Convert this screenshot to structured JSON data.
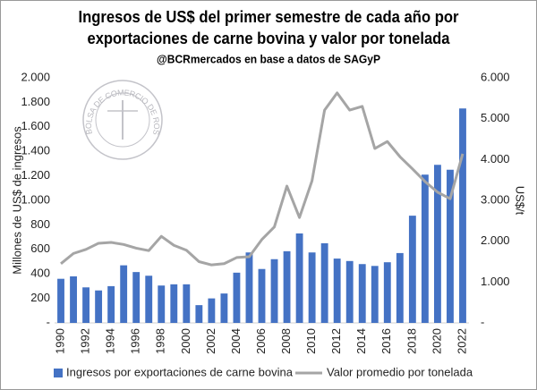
{
  "chart_data": {
    "type": "bar_line",
    "title": [
      "Ingresos de US$ del primer semestre de cada año por",
      "exportaciones de carne bovina y valor por tonelada"
    ],
    "subtitle": "@BCRmercados en base a datos de SAGyP",
    "watermark": "BOLSA DE COMERCIO DE ROSARIO",
    "ylabel": "Millones de US$ de ingresos",
    "y2label": "US$/t",
    "categories": [
      "1990",
      null,
      "1992",
      null,
      "1994",
      null,
      "1996",
      null,
      "1998",
      null,
      "2000",
      null,
      "2002",
      null,
      "2004",
      null,
      "2006",
      null,
      "2008",
      null,
      "2010",
      null,
      "2012",
      null,
      "2014",
      null,
      "2016",
      null,
      "2018",
      null,
      "2020",
      null,
      "2022"
    ],
    "series": [
      {
        "name": "Ingresos por exportaciones de carne bovina",
        "type": "bar",
        "color": "#4472c4",
        "values": [
          360,
          380,
          290,
          265,
          300,
          470,
          415,
          385,
          305,
          315,
          315,
          145,
          200,
          240,
          410,
          575,
          440,
          520,
          585,
          730,
          575,
          650,
          525,
          505,
          480,
          465,
          495,
          570,
          875,
          1210,
          1290,
          1250,
          1750
        ]
      },
      {
        "name": "Valor promedio por tonelada",
        "type": "line",
        "color": "#a5a5a5",
        "axis": "y2",
        "values": [
          1450,
          1700,
          1800,
          1950,
          1970,
          1920,
          1830,
          1770,
          2120,
          1900,
          1780,
          1500,
          1420,
          1450,
          1600,
          1620,
          2040,
          2350,
          3350,
          2580,
          3480,
          5210,
          5630,
          5210,
          5300,
          4270,
          4440,
          4070,
          3770,
          3460,
          3200,
          3040,
          4140
        ]
      }
    ],
    "ylim": [
      0,
      2000
    ],
    "yticks": [
      {
        "value": 0,
        "label": "-"
      },
      200,
      400,
      600,
      800,
      {
        "value": 1000,
        "label": "1.000"
      },
      {
        "value": 1200,
        "label": "1.200"
      },
      {
        "value": 1400,
        "label": "1.400"
      },
      {
        "value": 1600,
        "label": "1.600"
      },
      {
        "value": 1800,
        "label": "1.800"
      },
      {
        "value": 2000,
        "label": "2.000"
      }
    ],
    "y2lim": [
      0,
      6000
    ],
    "y2ticks": [
      {
        "value": 0,
        "label": "-"
      },
      {
        "value": 1000,
        "label": "1.000"
      },
      {
        "value": 2000,
        "label": "2.000"
      },
      {
        "value": 3000,
        "label": "3.000"
      },
      {
        "value": 4000,
        "label": "4.000"
      },
      {
        "value": 5000,
        "label": "5.000"
      },
      {
        "value": 6000,
        "label": "6.000"
      }
    ],
    "legend": "bottom"
  }
}
